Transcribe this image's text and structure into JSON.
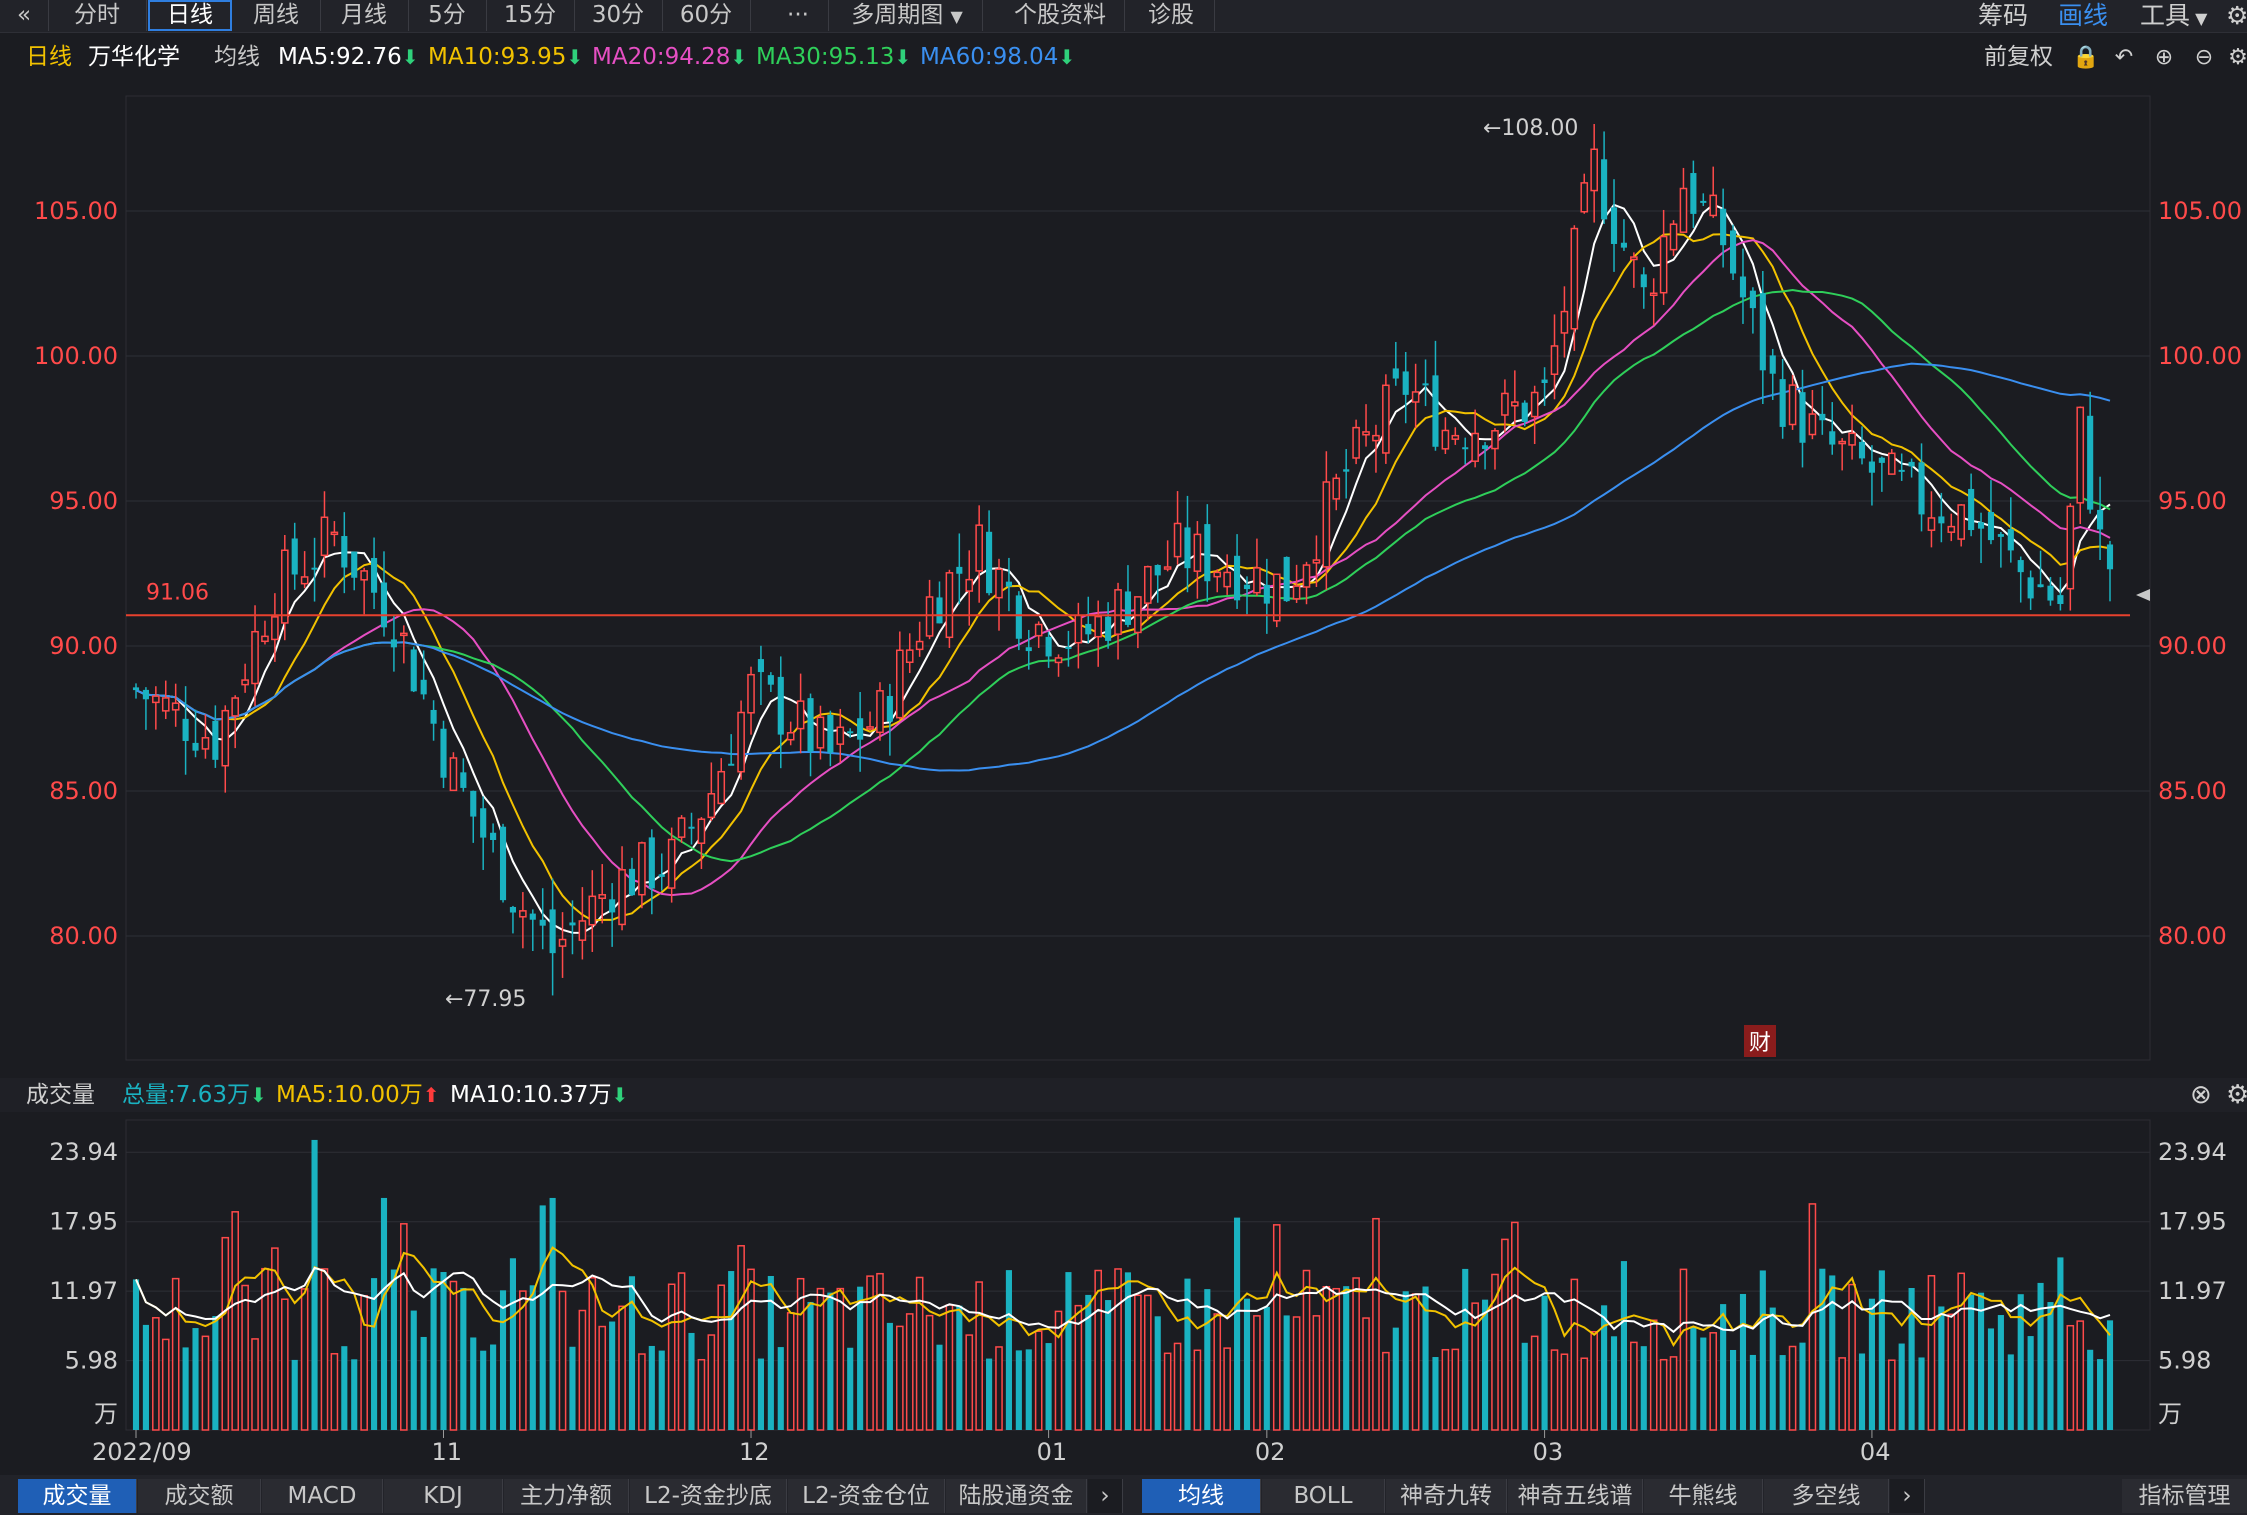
{
  "toolbar": {
    "collapse_icon": "«",
    "tabs": [
      "分时",
      "日线",
      "周线",
      "月线",
      "5分",
      "15分",
      "30分",
      "60分",
      "···",
      "多周期图",
      "个股资料",
      "诊股"
    ],
    "right": [
      "筹码",
      "画线",
      "工具"
    ]
  },
  "infobar": {
    "period": "日线",
    "stock": "万华化学",
    "avg_label": "均线",
    "ma5": "MA5:92.76",
    "ma10": "MA10:93.95",
    "ma20": "MA20:94.28",
    "ma30": "MA30:95.13",
    "ma60": "MA60:98.04",
    "adjust": "前复权"
  },
  "colors": {
    "up": "#ff4a4a",
    "down": "#1ab2c1",
    "ma5": "#ffffff",
    "ma10": "#f2c200",
    "ma20": "#e64fc3",
    "ma30": "#2fcf5a",
    "ma60": "#3a8ff0",
    "hline": "#e8412e",
    "axis_text": "#ff4a4a"
  },
  "price_axis": {
    "ticks": [
      "105.00",
      "100.00",
      "95.00",
      "90.00",
      "85.00",
      "80.00"
    ],
    "ref_line": "91.06",
    "high_label": "←108.00",
    "low_label": "←77.95",
    "event_marker": "财"
  },
  "volume": {
    "title": "成交量",
    "total": "总量:7.63万",
    "ma5": "MA5:10.00万",
    "ma10": "MA10:10.37万",
    "ticks": [
      "23.94",
      "17.95",
      "11.97",
      "5.98"
    ],
    "unit": "万"
  },
  "date_axis": [
    "2022/09",
    "11",
    "12",
    "01",
    "02",
    "03",
    "04"
  ],
  "bottom_tabs_left": [
    "成交量",
    "成交额",
    "MACD",
    "KDJ",
    "主力净额",
    "L2-资金抄底",
    "L2-资金仓位",
    "陆股通资金"
  ],
  "bottom_tabs_right": [
    "均线",
    "BOLL",
    "神奇九转",
    "神奇五线谱",
    "牛熊线",
    "多空线"
  ],
  "bottom_right": "指标管理",
  "chart_data": {
    "type": "candlestick",
    "ylim_price": [
      76,
      110
    ],
    "ylim_volume": [
      0,
      26
    ],
    "start_price": 88.5,
    "count": 200,
    "events": [
      {
        "bar": 0,
        "price": 88.5
      },
      {
        "bar": 8,
        "price": 86.8
      },
      {
        "bar": 14,
        "price": 92.0
      },
      {
        "bar": 20,
        "price": 93.8
      },
      {
        "bar": 26,
        "price": 91.0
      },
      {
        "bar": 32,
        "price": 85.5
      },
      {
        "bar": 38,
        "price": 81.5
      },
      {
        "bar": 42,
        "price": 79.5
      },
      {
        "bar": 48,
        "price": 81.8
      },
      {
        "bar": 54,
        "price": 82.6
      },
      {
        "bar": 58,
        "price": 85.0
      },
      {
        "bar": 62,
        "price": 88.5
      },
      {
        "bar": 66,
        "price": 87.5
      },
      {
        "bar": 70,
        "price": 86.2
      },
      {
        "bar": 75,
        "price": 87.6
      },
      {
        "bar": 80,
        "price": 91.5
      },
      {
        "bar": 85,
        "price": 93.4
      },
      {
        "bar": 90,
        "price": 90.8
      },
      {
        "bar": 95,
        "price": 90.2
      },
      {
        "bar": 100,
        "price": 91.6
      },
      {
        "bar": 105,
        "price": 93.2
      },
      {
        "bar": 110,
        "price": 92.8
      },
      {
        "bar": 116,
        "price": 92.0
      },
      {
        "bar": 122,
        "price": 96.0
      },
      {
        "bar": 128,
        "price": 99.0
      },
      {
        "bar": 132,
        "price": 97.5
      },
      {
        "bar": 137,
        "price": 97.8
      },
      {
        "bar": 142,
        "price": 98.6
      },
      {
        "bar": 147,
        "price": 106.5
      },
      {
        "bar": 152,
        "price": 102.0
      },
      {
        "bar": 156,
        "price": 106.0
      },
      {
        "bar": 160,
        "price": 104.0
      },
      {
        "bar": 165,
        "price": 99.0
      },
      {
        "bar": 170,
        "price": 97.0
      },
      {
        "bar": 175,
        "price": 96.0
      },
      {
        "bar": 180,
        "price": 95.0
      },
      {
        "bar": 185,
        "price": 94.5
      },
      {
        "bar": 190,
        "price": 92.5
      },
      {
        "bar": 194,
        "price": 91.5
      },
      {
        "bar": 196,
        "price": 97.5
      },
      {
        "bar": 198,
        "price": 93.5
      },
      {
        "bar": 199,
        "price": 92.8
      }
    ],
    "price_high": 108.0,
    "price_low": 77.95,
    "ref_line": 91.06,
    "volume_ma5": 10.0,
    "volume_ma10": 10.37,
    "total_volume": 7.63
  }
}
